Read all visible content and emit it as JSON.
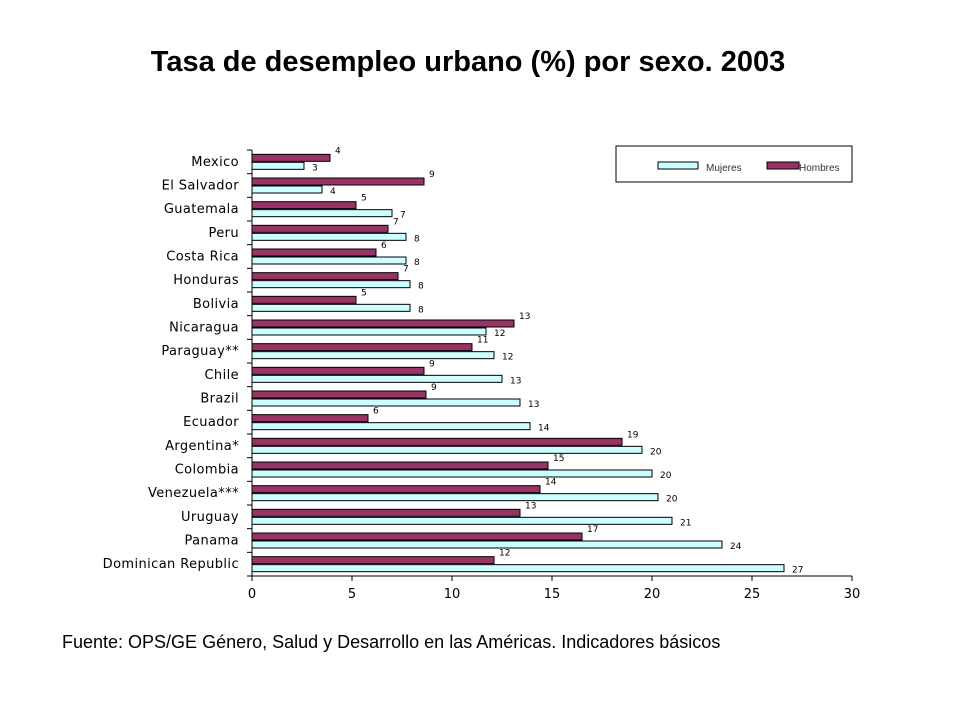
{
  "chart_data": {
    "type": "bar",
    "orientation": "horizontal",
    "title": "Tasa de desempleo urbano (%) por sexo. 2003",
    "source": "Fuente: OPS/GE Género, Salud y Desarrollo en las Américas. Indicadores básicos",
    "categories": [
      "Mexico",
      "El Salvador",
      "Guatemala",
      "Peru",
      "Costa Rica",
      "Honduras",
      "Bolivia",
      "Nicaragua",
      "Paraguay**",
      "Chile",
      "Brazil",
      "Ecuador",
      "Argentina*",
      "Colombia",
      "Venezuela***",
      "Uruguay",
      "Panama",
      "Dominican Republic"
    ],
    "series": [
      {
        "name": "Hombres",
        "color": "#993366",
        "values": [
          3.9,
          8.6,
          5.2,
          6.8,
          6.2,
          7.3,
          5.2,
          13.1,
          11.0,
          8.6,
          8.7,
          5.8,
          18.5,
          14.8,
          14.4,
          13.4,
          16.5,
          12.1
        ],
        "labels": [
          "4",
          "9",
          "5",
          "7",
          "6",
          "7",
          "5",
          "13",
          "11",
          "9",
          "9",
          "6",
          "19",
          "15",
          "14",
          "13",
          "17",
          "12"
        ]
      },
      {
        "name": "Mujeres",
        "color": "#CCFFFF",
        "values": [
          2.6,
          3.5,
          7.0,
          7.7,
          7.7,
          7.9,
          7.9,
          11.7,
          12.1,
          12.5,
          13.4,
          13.9,
          19.5,
          20.0,
          20.3,
          21.0,
          23.5,
          26.6
        ],
        "labels": [
          "3",
          "4",
          "7",
          "8",
          "8",
          "8",
          "8",
          "12",
          "12",
          "13",
          "13",
          "14",
          "20",
          "20",
          "20",
          "21",
          "24",
          "27"
        ]
      }
    ],
    "xlim": [
      0,
      30
    ],
    "xticks": [
      "0",
      "5",
      "10",
      "15",
      "20",
      "25",
      "30"
    ],
    "legend_position": "top-right",
    "grid": false
  }
}
